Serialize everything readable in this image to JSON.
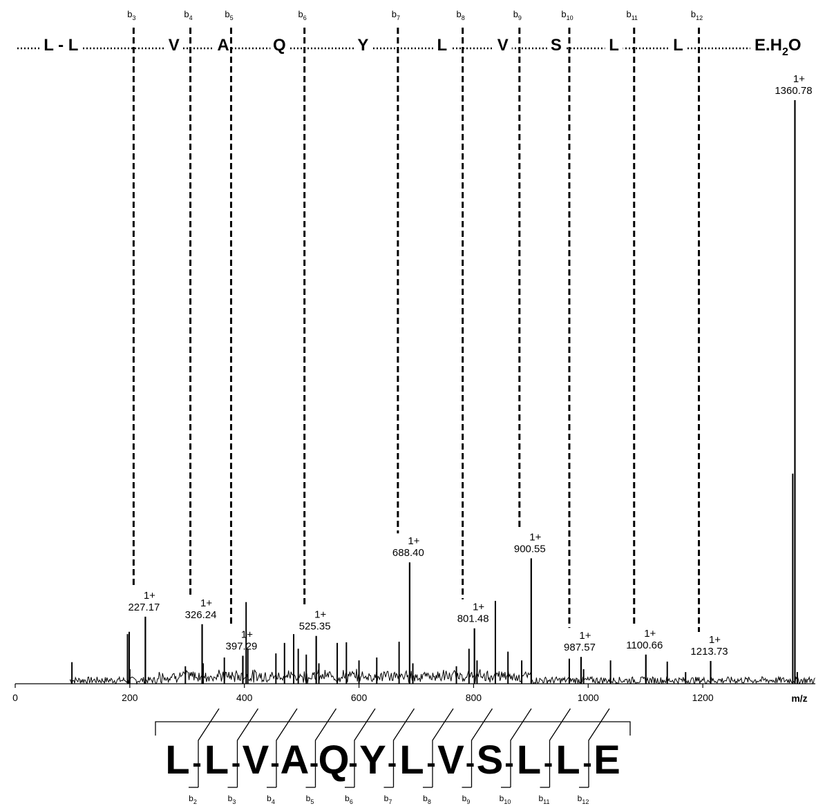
{
  "chart_data": {
    "type": "line",
    "title": "",
    "xlabel": "m/z",
    "ylabel": "",
    "xlim": [
      0,
      1400
    ],
    "ylim": [
      0,
      100
    ],
    "x_ticks": [
      "0",
      "200",
      "400",
      "600",
      "800",
      "1000",
      "1200"
    ],
    "grid": false,
    "sequence_ladder": [
      {
        "text": "L - L",
        "mz": 80
      },
      {
        "text": "V",
        "mz": 277
      },
      {
        "text": "A",
        "mz": 363
      },
      {
        "text": "Q",
        "mz": 461
      },
      {
        "text": "Y",
        "mz": 607
      },
      {
        "text": "L",
        "mz": 745
      },
      {
        "text": "V",
        "mz": 851
      },
      {
        "text": "S",
        "mz": 944
      },
      {
        "text": "L",
        "mz": 1045
      },
      {
        "text": "L",
        "mz": 1157
      },
      {
        "text": "E.H",
        "sub": "2",
        "tail": "O",
        "mz": 1331
      }
    ],
    "fragments": [
      {
        "ion": "b",
        "n": "3",
        "mz": 227.17,
        "label": "227.17",
        "charge": "1+",
        "intensity": 11.5
      },
      {
        "ion": "b",
        "n": "4",
        "mz": 326.24,
        "label": "326.24",
        "charge": "1+",
        "intensity": 10.2
      },
      {
        "ion": "b",
        "n": "5",
        "mz": 397.29,
        "label": "397.29",
        "charge": "1+",
        "intensity": 4.8
      },
      {
        "ion": "b",
        "n": "6",
        "mz": 525.35,
        "label": "525.35",
        "charge": "1+",
        "intensity": 8.2
      },
      {
        "ion": "b",
        "n": "7",
        "mz": 688.4,
        "label": "688.40",
        "charge": "1+",
        "intensity": 20.8
      },
      {
        "ion": "b",
        "n": "8",
        "mz": 801.48,
        "label": "801.48",
        "charge": "1+",
        "intensity": 9.5
      },
      {
        "ion": "b",
        "n": "9",
        "mz": 900.55,
        "label": "900.55",
        "charge": "1+",
        "intensity": 21.5
      },
      {
        "ion": "b",
        "n": "10",
        "mz": 987.57,
        "label": "987.57",
        "charge": "1+",
        "intensity": 4.6
      },
      {
        "ion": "b",
        "n": "11",
        "mz": 1100.66,
        "label": "1100.66",
        "charge": "1+",
        "intensity": 5.0
      },
      {
        "ion": "b",
        "n": "12",
        "mz": 1213.73,
        "label": "1213.73",
        "charge": "1+",
        "intensity": 3.9
      }
    ],
    "precursor": {
      "mz": 1360.78,
      "label": "1360.78",
      "charge": "1+",
      "intensity": 100
    },
    "other_peaks": [
      {
        "mz": 99,
        "intensity": 3.7
      },
      {
        "mz": 196,
        "intensity": 8.5
      },
      {
        "mz": 199,
        "intensity": 8.9
      },
      {
        "mz": 200,
        "intensity": 2.5
      },
      {
        "mz": 297,
        "intensity": 3.0
      },
      {
        "mz": 328,
        "intensity": 3.5
      },
      {
        "mz": 365,
        "intensity": 4.5
      },
      {
        "mz": 403,
        "intensity": 14.0
      },
      {
        "mz": 406,
        "intensity": 6.0
      },
      {
        "mz": 455,
        "intensity": 5.2
      },
      {
        "mz": 470,
        "intensity": 7.0
      },
      {
        "mz": 486,
        "intensity": 8.5
      },
      {
        "mz": 494,
        "intensity": 6.0
      },
      {
        "mz": 508,
        "intensity": 5.0
      },
      {
        "mz": 530,
        "intensity": 3.5
      },
      {
        "mz": 562,
        "intensity": 7.0
      },
      {
        "mz": 578,
        "intensity": 7.1
      },
      {
        "mz": 600,
        "intensity": 4.0
      },
      {
        "mz": 631,
        "intensity": 4.5
      },
      {
        "mz": 670,
        "intensity": 7.2
      },
      {
        "mz": 694,
        "intensity": 3.5
      },
      {
        "mz": 770,
        "intensity": 3.0
      },
      {
        "mz": 792,
        "intensity": 6.0
      },
      {
        "mz": 806,
        "intensity": 4.0
      },
      {
        "mz": 838,
        "intensity": 14.2
      },
      {
        "mz": 860,
        "intensity": 5.5
      },
      {
        "mz": 884,
        "intensity": 4.0
      },
      {
        "mz": 967,
        "intensity": 4.3
      },
      {
        "mz": 992,
        "intensity": 2.5
      },
      {
        "mz": 1039,
        "intensity": 4.0
      },
      {
        "mz": 1138,
        "intensity": 3.8
      },
      {
        "mz": 1170,
        "intensity": 2.0
      },
      {
        "mz": 1357,
        "intensity": 36.0
      },
      {
        "mz": 1365,
        "intensity": 2.0
      }
    ],
    "peptide": {
      "residues": [
        "L",
        "L",
        "V",
        "A",
        "Q",
        "Y",
        "L",
        "V",
        "S",
        "L",
        "L",
        "E"
      ],
      "b_ions": [
        "2",
        "3",
        "4",
        "5",
        "6",
        "7",
        "8",
        "9",
        "10",
        "11",
        "12"
      ]
    }
  }
}
